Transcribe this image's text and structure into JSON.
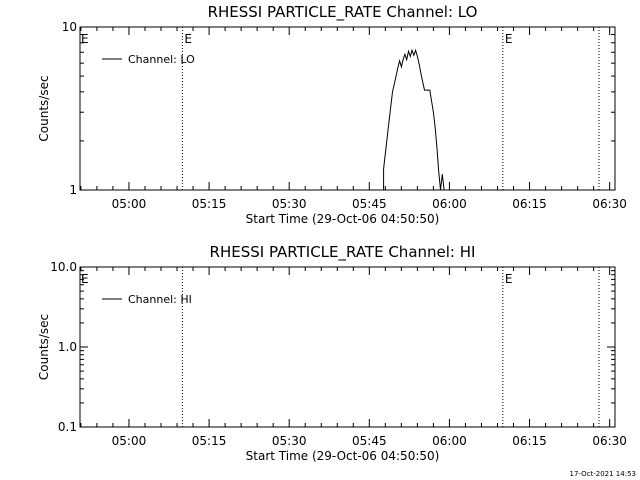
{
  "footer": {
    "timestamp": "17-Oct-2021 14:53"
  },
  "chart_data": [
    {
      "type": "line",
      "title": "RHESSI PARTICLE_RATE Channel: LO",
      "xlabel": "Start Time (29-Oct-06 04:50:50)",
      "ylabel": "Counts/sec",
      "xscale": "time",
      "yscale": "log",
      "xlim": [
        "04:50:50",
        "06:31:00"
      ],
      "ylim": [
        1,
        10
      ],
      "xticks": [
        "05:00",
        "05:15",
        "05:30",
        "05:45",
        "06:00",
        "06:15",
        "06:30"
      ],
      "yticks": [
        "1",
        "10"
      ],
      "legend": {
        "position": "top-left",
        "entries": [
          "Channel: LO"
        ]
      },
      "event_markers": [
        {
          "time": "05:10:00",
          "label": "E"
        },
        {
          "time": "06:10:00",
          "label": "E"
        },
        {
          "time": "06:28:00",
          "label": ""
        }
      ],
      "edge_marker": "E",
      "series": [
        {
          "name": "Channel: LO",
          "points": [
            [
              "05:47:40",
              1.0
            ],
            [
              "05:47:40",
              1.35
            ],
            [
              "05:48:40",
              2.6
            ],
            [
              "05:49:20",
              4.0
            ],
            [
              "05:49:50",
              4.7
            ],
            [
              "05:50:20",
              5.6
            ],
            [
              "05:50:40",
              6.2
            ],
            [
              "05:51:00",
              5.7
            ],
            [
              "05:51:20",
              6.3
            ],
            [
              "05:51:40",
              6.8
            ],
            [
              "05:52:00",
              6.3
            ],
            [
              "05:52:20",
              7.1
            ],
            [
              "05:52:40",
              6.6
            ],
            [
              "05:53:00",
              7.2
            ],
            [
              "05:53:20",
              6.7
            ],
            [
              "05:53:40",
              7.2
            ],
            [
              "05:54:00",
              6.6
            ],
            [
              "05:54:20",
              5.9
            ],
            [
              "05:54:40",
              5.2
            ],
            [
              "05:55:00",
              4.6
            ],
            [
              "05:55:20",
              4.1
            ],
            [
              "05:56:20",
              4.1
            ],
            [
              "05:56:40",
              3.5
            ],
            [
              "05:57:00",
              3.0
            ],
            [
              "05:57:20",
              2.4
            ],
            [
              "05:57:40",
              1.8
            ],
            [
              "05:58:00",
              1.3
            ],
            [
              "05:58:20",
              1.0
            ],
            [
              "05:58:40",
              1.25
            ],
            [
              "05:59:00",
              1.0
            ]
          ]
        }
      ]
    },
    {
      "type": "line",
      "title": "RHESSI PARTICLE_RATE Channel: HI",
      "xlabel": "Start Time (29-Oct-06 04:50:50)",
      "ylabel": "Counts/sec",
      "xscale": "time",
      "yscale": "log",
      "xlim": [
        "04:50:50",
        "06:31:00"
      ],
      "ylim": [
        0.1,
        10
      ],
      "xticks": [
        "05:00",
        "05:15",
        "05:30",
        "05:45",
        "06:00",
        "06:15",
        "06:30"
      ],
      "yticks": [
        "0.1",
        "1.0",
        "10.0"
      ],
      "legend": {
        "position": "top-left",
        "entries": [
          "Channel: HI"
        ]
      },
      "event_markers": [
        {
          "time": "05:10:00",
          "label": ""
        },
        {
          "time": "06:10:00",
          "label": "E"
        },
        {
          "time": "06:28:00",
          "label": ""
        }
      ],
      "edge_marker": "E",
      "series": [
        {
          "name": "Channel: HI",
          "points": []
        }
      ]
    }
  ]
}
